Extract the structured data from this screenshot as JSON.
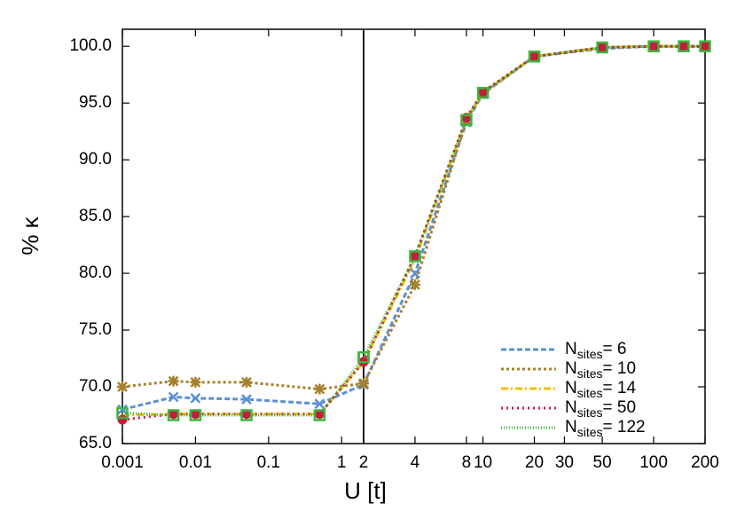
{
  "chart_data": [
    {
      "type": "line",
      "xlabel": "U [t]",
      "ylabel": "% κ",
      "xscale": "log",
      "x": [
        0.001,
        0.005,
        0.01,
        0.05,
        0.5,
        2
      ],
      "xlim": [
        0.001,
        2
      ],
      "xticks": [
        0.001,
        0.01,
        0.1,
        1
      ],
      "ylim": [
        65,
        101.5
      ],
      "yticks": [
        {
          "value": 65,
          "label": "65.0"
        },
        {
          "value": 70,
          "label": "70.0"
        },
        {
          "value": 75,
          "label": "75.0"
        },
        {
          "value": 80,
          "label": "80.0"
        },
        {
          "value": 85,
          "label": "85.0"
        },
        {
          "value": 90,
          "label": "90.0"
        },
        {
          "value": 95,
          "label": "95.0"
        },
        {
          "value": 100,
          "label": "100.0"
        }
      ],
      "series": [
        {
          "name": "Nsites= 6",
          "color": "#5b8fd6",
          "dash": "6,3",
          "marker": "x",
          "values": [
            68.0,
            69.1,
            69.0,
            68.9,
            68.5,
            70.2
          ]
        },
        {
          "name": "Nsites= 10",
          "color": "#a6802a",
          "dash": "3,3",
          "marker": "star",
          "values": [
            70.0,
            70.5,
            70.4,
            70.4,
            69.8,
            70.3
          ]
        },
        {
          "name": "Nsites= 14",
          "color": "#f0c000",
          "dash": "8,3,2,3",
          "marker": "none",
          "values": [
            67.5,
            67.6,
            67.6,
            67.6,
            67.6,
            72.2
          ]
        },
        {
          "name": "Nsites= 50",
          "color": "#c0203c",
          "dash": "2,4",
          "marker": "circle",
          "values": [
            67.1,
            67.6,
            67.6,
            67.6,
            67.6,
            72.2
          ]
        },
        {
          "name": "Nsites= 122",
          "color": "#3cb43c",
          "dash": "1,2",
          "marker": "square",
          "values": [
            67.7,
            67.5,
            67.5,
            67.5,
            67.5,
            72.6
          ]
        }
      ]
    },
    {
      "type": "line",
      "xscale": "log",
      "legend": "lower right",
      "x": [
        2,
        4,
        8,
        10,
        20,
        50,
        100,
        150,
        200
      ],
      "xlim": [
        2,
        200
      ],
      "xticks": [
        2,
        4,
        8,
        10,
        20,
        30,
        50,
        100,
        200
      ],
      "ylim": [
        65,
        101.5
      ],
      "series": [
        {
          "name": "Nsites= 6",
          "color": "#5b8fd6",
          "dash": "6,3",
          "marker": "x",
          "values": [
            70.2,
            80.0,
            93.3,
            95.8,
            99.1,
            99.8,
            100,
            100,
            100
          ]
        },
        {
          "name": "Nsites= 10",
          "color": "#a6802a",
          "dash": "3,3",
          "marker": "star",
          "values": [
            70.3,
            79.0,
            93.5,
            95.9,
            99.1,
            99.9,
            100,
            100,
            100
          ]
        },
        {
          "name": "Nsites= 14",
          "color": "#f0c000",
          "dash": "8,3,2,3",
          "marker": "none",
          "values": [
            72.2,
            81.2,
            93.6,
            95.9,
            99.1,
            99.9,
            100,
            100,
            100
          ]
        },
        {
          "name": "Nsites= 50",
          "color": "#c0203c",
          "dash": "2,4",
          "marker": "circle",
          "values": [
            72.2,
            81.5,
            93.7,
            96.0,
            99.1,
            99.9,
            100,
            100,
            100
          ]
        },
        {
          "name": "Nsites= 122",
          "color": "#3cb43c",
          "dash": "1,2",
          "marker": "square",
          "values": [
            72.6,
            81.5,
            93.5,
            95.9,
            99.1,
            99.9,
            100,
            100,
            100
          ]
        }
      ]
    }
  ]
}
